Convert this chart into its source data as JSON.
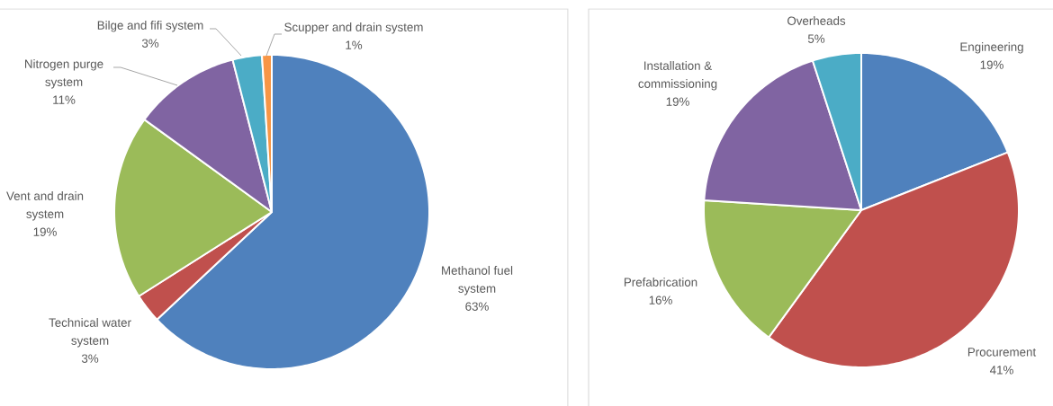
{
  "chart_data": [
    {
      "type": "pie",
      "categories": [
        "Methanol fuel system",
        "Technical water system",
        "Vent and drain system",
        "Nitrogen purge system",
        "Bilge and fifi system",
        "Scupper and drain system"
      ],
      "values": [
        63,
        3,
        19,
        11,
        3,
        1
      ],
      "value_labels": [
        "63%",
        "3%",
        "19%",
        "11%",
        "3%",
        "1%"
      ],
      "colors": [
        "#4f81bd",
        "#c0504d",
        "#9bbb59",
        "#8064a2",
        "#4bacc6",
        "#f79646"
      ]
    },
    {
      "type": "pie",
      "categories": [
        "Engineering",
        "Procurement",
        "Prefabrication",
        "Installation & commissioning",
        "Overheads"
      ],
      "values": [
        19,
        41,
        16,
        19,
        5
      ],
      "value_labels": [
        "19%",
        "41%",
        "16%",
        "19%",
        "5%"
      ],
      "colors": [
        "#4f81bd",
        "#c0504d",
        "#9bbb59",
        "#8064a2",
        "#4bacc6"
      ]
    }
  ]
}
